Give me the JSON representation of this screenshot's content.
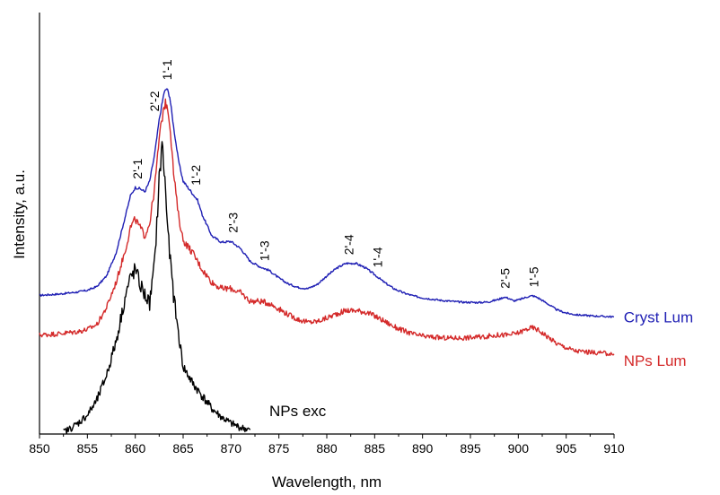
{
  "chart_data": {
    "type": "line",
    "title": "",
    "xlabel": "Wavelength, nm",
    "ylabel": "Intensity, a.u.",
    "xlim": [
      850,
      910
    ],
    "ylim": [
      0,
      1
    ],
    "x_ticks": [
      850,
      855,
      860,
      865,
      870,
      875,
      880,
      885,
      890,
      895,
      900,
      905,
      910
    ],
    "y_ticks_shown": false,
    "grid": false,
    "legend": "inline-right",
    "series": [
      {
        "name": "Cryst Lum",
        "color": "#1f1fb4",
        "points": [
          [
            850,
            0.329
          ],
          [
            852,
            0.332
          ],
          [
            854,
            0.337
          ],
          [
            855,
            0.341
          ],
          [
            856,
            0.35
          ],
          [
            857,
            0.375
          ],
          [
            858,
            0.43
          ],
          [
            859,
            0.52
          ],
          [
            859.5,
            0.565
          ],
          [
            860,
            0.585
          ],
          [
            860.5,
            0.582
          ],
          [
            861,
            0.575
          ],
          [
            861.5,
            0.6
          ],
          [
            862,
            0.66
          ],
          [
            862.5,
            0.745
          ],
          [
            863,
            0.81
          ],
          [
            863.3,
            0.82
          ],
          [
            863.6,
            0.8
          ],
          [
            864,
            0.73
          ],
          [
            864.5,
            0.65
          ],
          [
            865,
            0.6
          ],
          [
            866,
            0.57
          ],
          [
            866.5,
            0.555
          ],
          [
            867,
            0.52
          ],
          [
            868,
            0.47
          ],
          [
            869,
            0.455
          ],
          [
            870,
            0.457
          ],
          [
            871,
            0.44
          ],
          [
            872,
            0.41
          ],
          [
            873,
            0.397
          ],
          [
            874,
            0.388
          ],
          [
            875,
            0.37
          ],
          [
            876,
            0.356
          ],
          [
            877,
            0.348
          ],
          [
            878,
            0.345
          ],
          [
            879,
            0.355
          ],
          [
            880,
            0.375
          ],
          [
            881,
            0.393
          ],
          [
            882,
            0.405
          ],
          [
            883,
            0.405
          ],
          [
            884,
            0.395
          ],
          [
            885,
            0.378
          ],
          [
            886,
            0.36
          ],
          [
            887,
            0.345
          ],
          [
            888,
            0.335
          ],
          [
            889,
            0.328
          ],
          [
            890,
            0.323
          ],
          [
            892,
            0.317
          ],
          [
            894,
            0.313
          ],
          [
            896,
            0.312
          ],
          [
            897,
            0.314
          ],
          [
            898,
            0.32
          ],
          [
            898.5,
            0.325
          ],
          [
            899,
            0.322
          ],
          [
            899.5,
            0.316
          ],
          [
            900,
            0.318
          ],
          [
            901,
            0.326
          ],
          [
            901.5,
            0.328
          ],
          [
            902,
            0.324
          ],
          [
            903,
            0.31
          ],
          [
            904,
            0.295
          ],
          [
            905,
            0.287
          ],
          [
            906,
            0.283
          ],
          [
            908,
            0.28
          ],
          [
            910,
            0.278
          ]
        ]
      },
      {
        "name": "NPs Lum",
        "color": "#d42a2a",
        "points": [
          [
            850,
            0.235
          ],
          [
            852,
            0.238
          ],
          [
            854,
            0.243
          ],
          [
            855,
            0.248
          ],
          [
            856,
            0.26
          ],
          [
            857,
            0.3
          ],
          [
            858,
            0.36
          ],
          [
            859,
            0.44
          ],
          [
            859.5,
            0.49
          ],
          [
            860,
            0.51
          ],
          [
            860.5,
            0.49
          ],
          [
            861,
            0.47
          ],
          [
            861.5,
            0.5
          ],
          [
            862,
            0.58
          ],
          [
            862.5,
            0.7
          ],
          [
            863,
            0.78
          ],
          [
            863.3,
            0.785
          ],
          [
            863.6,
            0.74
          ],
          [
            864,
            0.62
          ],
          [
            864.5,
            0.52
          ],
          [
            865,
            0.46
          ],
          [
            866,
            0.43
          ],
          [
            867,
            0.39
          ],
          [
            868,
            0.36
          ],
          [
            869,
            0.345
          ],
          [
            870,
            0.345
          ],
          [
            871,
            0.335
          ],
          [
            872,
            0.315
          ],
          [
            873,
            0.315
          ],
          [
            874,
            0.31
          ],
          [
            875,
            0.297
          ],
          [
            876,
            0.283
          ],
          [
            877,
            0.272
          ],
          [
            878,
            0.265
          ],
          [
            879,
            0.267
          ],
          [
            880,
            0.275
          ],
          [
            881,
            0.285
          ],
          [
            882,
            0.293
          ],
          [
            883,
            0.293
          ],
          [
            884,
            0.29
          ],
          [
            885,
            0.28
          ],
          [
            886,
            0.268
          ],
          [
            887,
            0.255
          ],
          [
            888,
            0.245
          ],
          [
            889,
            0.237
          ],
          [
            890,
            0.232
          ],
          [
            892,
            0.228
          ],
          [
            894,
            0.228
          ],
          [
            896,
            0.23
          ],
          [
            898,
            0.235
          ],
          [
            899,
            0.235
          ],
          [
            900,
            0.24
          ],
          [
            901,
            0.25
          ],
          [
            901.5,
            0.252
          ],
          [
            902,
            0.248
          ],
          [
            903,
            0.232
          ],
          [
            904,
            0.215
          ],
          [
            905,
            0.205
          ],
          [
            906,
            0.197
          ],
          [
            908,
            0.193
          ],
          [
            910,
            0.19
          ]
        ]
      },
      {
        "name": "NPs exc",
        "color": "#000000",
        "points": [
          [
            852.5,
            0.005
          ],
          [
            853,
            0.01
          ],
          [
            854,
            0.025
          ],
          [
            855,
            0.045
          ],
          [
            856,
            0.08
          ],
          [
            857,
            0.14
          ],
          [
            858,
            0.22
          ],
          [
            859,
            0.33
          ],
          [
            859.5,
            0.37
          ],
          [
            860,
            0.39
          ],
          [
            860.5,
            0.355
          ],
          [
            861,
            0.33
          ],
          [
            861.5,
            0.31
          ],
          [
            862,
            0.4
          ],
          [
            862.5,
            0.6
          ],
          [
            862.8,
            0.69
          ],
          [
            863.1,
            0.6
          ],
          [
            863.5,
            0.45
          ],
          [
            864,
            0.33
          ],
          [
            864.5,
            0.24
          ],
          [
            865,
            0.16
          ],
          [
            866,
            0.12
          ],
          [
            867,
            0.09
          ],
          [
            868,
            0.06
          ],
          [
            869,
            0.04
          ],
          [
            870,
            0.025
          ],
          [
            871,
            0.015
          ],
          [
            872,
            0.01
          ]
        ]
      }
    ],
    "series_labels": [
      {
        "text": "Cryst Lum",
        "x": 911,
        "y": 0.278
      },
      {
        "text": "NPs Lum",
        "x": 911,
        "y": 0.175
      },
      {
        "text": "NPs exc",
        "x": 874,
        "y": 0.055
      }
    ],
    "peak_labels": [
      {
        "text": "2'-1",
        "x": 860.2,
        "y": 0.605
      },
      {
        "text": "2'-2",
        "x": 862.0,
        "y": 0.765
      },
      {
        "text": "1'-1",
        "x": 863.3,
        "y": 0.84
      },
      {
        "text": "1'-2",
        "x": 866.3,
        "y": 0.59
      },
      {
        "text": "2'-3",
        "x": 870.2,
        "y": 0.477
      },
      {
        "text": "1'-3",
        "x": 873.5,
        "y": 0.41
      },
      {
        "text": "2'-4",
        "x": 882.3,
        "y": 0.425
      },
      {
        "text": "1'-4",
        "x": 885.3,
        "y": 0.395
      },
      {
        "text": "2'-5",
        "x": 898.6,
        "y": 0.345
      },
      {
        "text": "1'-5",
        "x": 901.6,
        "y": 0.348
      }
    ]
  }
}
